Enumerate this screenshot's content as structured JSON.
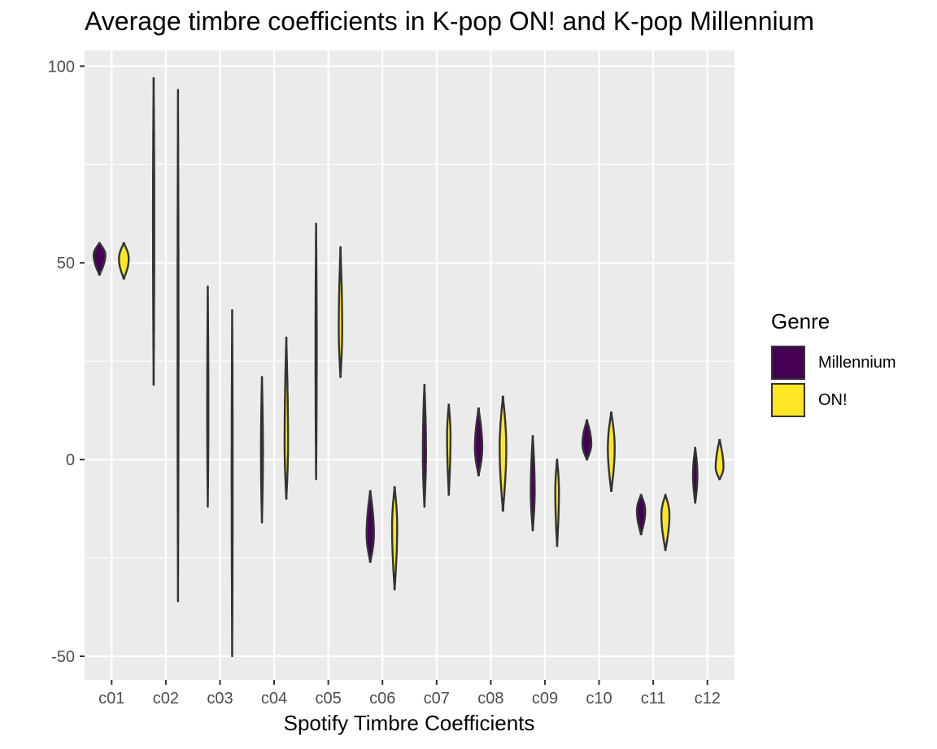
{
  "chart_data": {
    "type": "violin",
    "title": "Average timbre coefficients in K-pop ON! and K-pop Millennium",
    "xlabel": "Spotify Timbre Coefficients",
    "ylabel": "",
    "categories": [
      "c01",
      "c02",
      "c03",
      "c04",
      "c05",
      "c06",
      "c07",
      "c08",
      "c09",
      "c10",
      "c11",
      "c12"
    ],
    "yticks": [
      -50,
      0,
      50,
      100
    ],
    "ylim": [
      -56,
      104
    ],
    "grid": true,
    "legend": {
      "title": "Genre",
      "position": "right"
    },
    "series": [
      {
        "name": "Millennium",
        "color": "#440154",
        "values": [
          {
            "min": 47,
            "max": 55,
            "mode": 52,
            "width": 0.48
          },
          {
            "min": 19,
            "max": 97,
            "mode": 62,
            "width": 0.05
          },
          {
            "min": -12,
            "max": 44,
            "mode": 12,
            "width": 0.05
          },
          {
            "min": -16,
            "max": 21,
            "mode": 2,
            "width": 0.08
          },
          {
            "min": -5,
            "max": 60,
            "mode": 28,
            "width": 0.05
          },
          {
            "min": -26,
            "max": -8,
            "mode": -19,
            "width": 0.3
          },
          {
            "min": -12,
            "max": 19,
            "mode": 2,
            "width": 0.13
          },
          {
            "min": -4,
            "max": 13,
            "mode": 3,
            "width": 0.3
          },
          {
            "min": -18,
            "max": 6,
            "mode": -8,
            "width": 0.16
          },
          {
            "min": 0,
            "max": 10,
            "mode": 4,
            "width": 0.36
          },
          {
            "min": -19,
            "max": -9,
            "mode": -13,
            "width": 0.34
          },
          {
            "min": -11,
            "max": 3,
            "mode": -4,
            "width": 0.18
          }
        ]
      },
      {
        "name": "ON!",
        "color": "#fde725",
        "values": [
          {
            "min": 46,
            "max": 55,
            "mode": 51,
            "width": 0.4
          },
          {
            "min": -36,
            "max": 94,
            "mode": 30,
            "width": 0.04
          },
          {
            "min": -50,
            "max": 38,
            "mode": -3,
            "width": 0.04
          },
          {
            "min": -10,
            "max": 31,
            "mode": 4,
            "width": 0.14
          },
          {
            "min": 21,
            "max": 54,
            "mode": 33,
            "width": 0.14
          },
          {
            "min": -33,
            "max": -7,
            "mode": -17,
            "width": 0.21
          },
          {
            "min": -9,
            "max": 14,
            "mode": 6,
            "width": 0.14
          },
          {
            "min": -13,
            "max": 16,
            "mode": 3,
            "width": 0.27
          },
          {
            "min": -22,
            "max": 0,
            "mode": -8,
            "width": 0.15
          },
          {
            "min": -8,
            "max": 12,
            "mode": 3,
            "width": 0.28
          },
          {
            "min": -23,
            "max": -9,
            "mode": -14,
            "width": 0.33
          },
          {
            "min": -5,
            "max": 5,
            "mode": -2,
            "width": 0.32
          }
        ]
      }
    ]
  }
}
